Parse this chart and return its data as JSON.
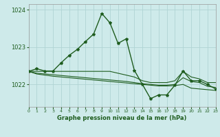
{
  "title": "Graphe pression niveau de la mer (hPa)",
  "bg_color": "#ceeaea",
  "grid_color": "#afd4d4",
  "line_color": "#1e5c1e",
  "xlim": [
    0,
    23
  ],
  "ylim": [
    1021.4,
    1024.15
  ],
  "yticks": [
    1022,
    1023,
    1024
  ],
  "xticks": [
    0,
    1,
    2,
    3,
    4,
    5,
    6,
    7,
    8,
    9,
    10,
    11,
    12,
    13,
    14,
    15,
    16,
    17,
    18,
    19,
    20,
    21,
    22,
    23
  ],
  "series_main": [
    [
      0,
      1022.35
    ],
    [
      1,
      1022.42
    ],
    [
      2,
      1022.36
    ],
    [
      3,
      1022.36
    ],
    [
      4,
      1022.58
    ],
    [
      5,
      1022.78
    ],
    [
      6,
      1022.94
    ],
    [
      7,
      1023.15
    ],
    [
      8,
      1023.35
    ],
    [
      9,
      1023.9
    ],
    [
      10,
      1023.65
    ],
    [
      11,
      1023.1
    ],
    [
      12,
      1023.22
    ],
    [
      13,
      1022.38
    ],
    [
      14,
      1022.0
    ],
    [
      15,
      1021.62
    ],
    [
      16,
      1021.72
    ],
    [
      17,
      1021.72
    ],
    [
      18,
      1021.98
    ],
    [
      19,
      1022.36
    ],
    [
      20,
      1022.1
    ],
    [
      21,
      1022.1
    ],
    [
      22,
      1022.0
    ],
    [
      23,
      1021.88
    ]
  ],
  "series_line2": [
    [
      0,
      1022.35
    ],
    [
      1,
      1022.35
    ],
    [
      2,
      1022.35
    ],
    [
      3,
      1022.35
    ],
    [
      4,
      1022.35
    ],
    [
      5,
      1022.35
    ],
    [
      6,
      1022.35
    ],
    [
      7,
      1022.35
    ],
    [
      8,
      1022.35
    ],
    [
      9,
      1022.35
    ],
    [
      10,
      1022.35
    ],
    [
      11,
      1022.3
    ],
    [
      12,
      1022.25
    ],
    [
      13,
      1022.2
    ],
    [
      14,
      1022.1
    ],
    [
      15,
      1022.05
    ],
    [
      16,
      1022.05
    ],
    [
      17,
      1022.05
    ],
    [
      18,
      1022.1
    ],
    [
      19,
      1022.35
    ],
    [
      20,
      1022.2
    ],
    [
      21,
      1022.15
    ],
    [
      22,
      1022.05
    ],
    [
      23,
      1022.05
    ]
  ],
  "series_line3": [
    [
      0,
      1022.35
    ],
    [
      1,
      1022.28
    ],
    [
      2,
      1022.25
    ],
    [
      3,
      1022.22
    ],
    [
      4,
      1022.2
    ],
    [
      5,
      1022.18
    ],
    [
      6,
      1022.16
    ],
    [
      7,
      1022.14
    ],
    [
      8,
      1022.12
    ],
    [
      9,
      1022.1
    ],
    [
      10,
      1022.08
    ],
    [
      11,
      1022.06
    ],
    [
      12,
      1022.04
    ],
    [
      13,
      1022.02
    ],
    [
      14,
      1022.0
    ],
    [
      15,
      1021.98
    ],
    [
      16,
      1021.96
    ],
    [
      17,
      1021.96
    ],
    [
      18,
      1021.97
    ],
    [
      19,
      1022.0
    ],
    [
      20,
      1021.9
    ],
    [
      21,
      1021.88
    ],
    [
      22,
      1021.86
    ],
    [
      23,
      1021.84
    ]
  ],
  "series_line4": [
    [
      0,
      1022.35
    ],
    [
      1,
      1022.3
    ],
    [
      2,
      1022.28
    ],
    [
      3,
      1022.26
    ],
    [
      4,
      1022.24
    ],
    [
      5,
      1022.22
    ],
    [
      6,
      1022.2
    ],
    [
      7,
      1022.18
    ],
    [
      8,
      1022.16
    ],
    [
      9,
      1022.14
    ],
    [
      10,
      1022.12
    ],
    [
      11,
      1022.1
    ],
    [
      12,
      1022.08
    ],
    [
      13,
      1022.05
    ],
    [
      14,
      1022.02
    ],
    [
      15,
      1022.0
    ],
    [
      16,
      1021.98
    ],
    [
      17,
      1021.98
    ],
    [
      18,
      1022.0
    ],
    [
      19,
      1022.18
    ],
    [
      20,
      1022.08
    ],
    [
      21,
      1022.05
    ],
    [
      22,
      1021.95
    ],
    [
      23,
      1021.92
    ]
  ]
}
